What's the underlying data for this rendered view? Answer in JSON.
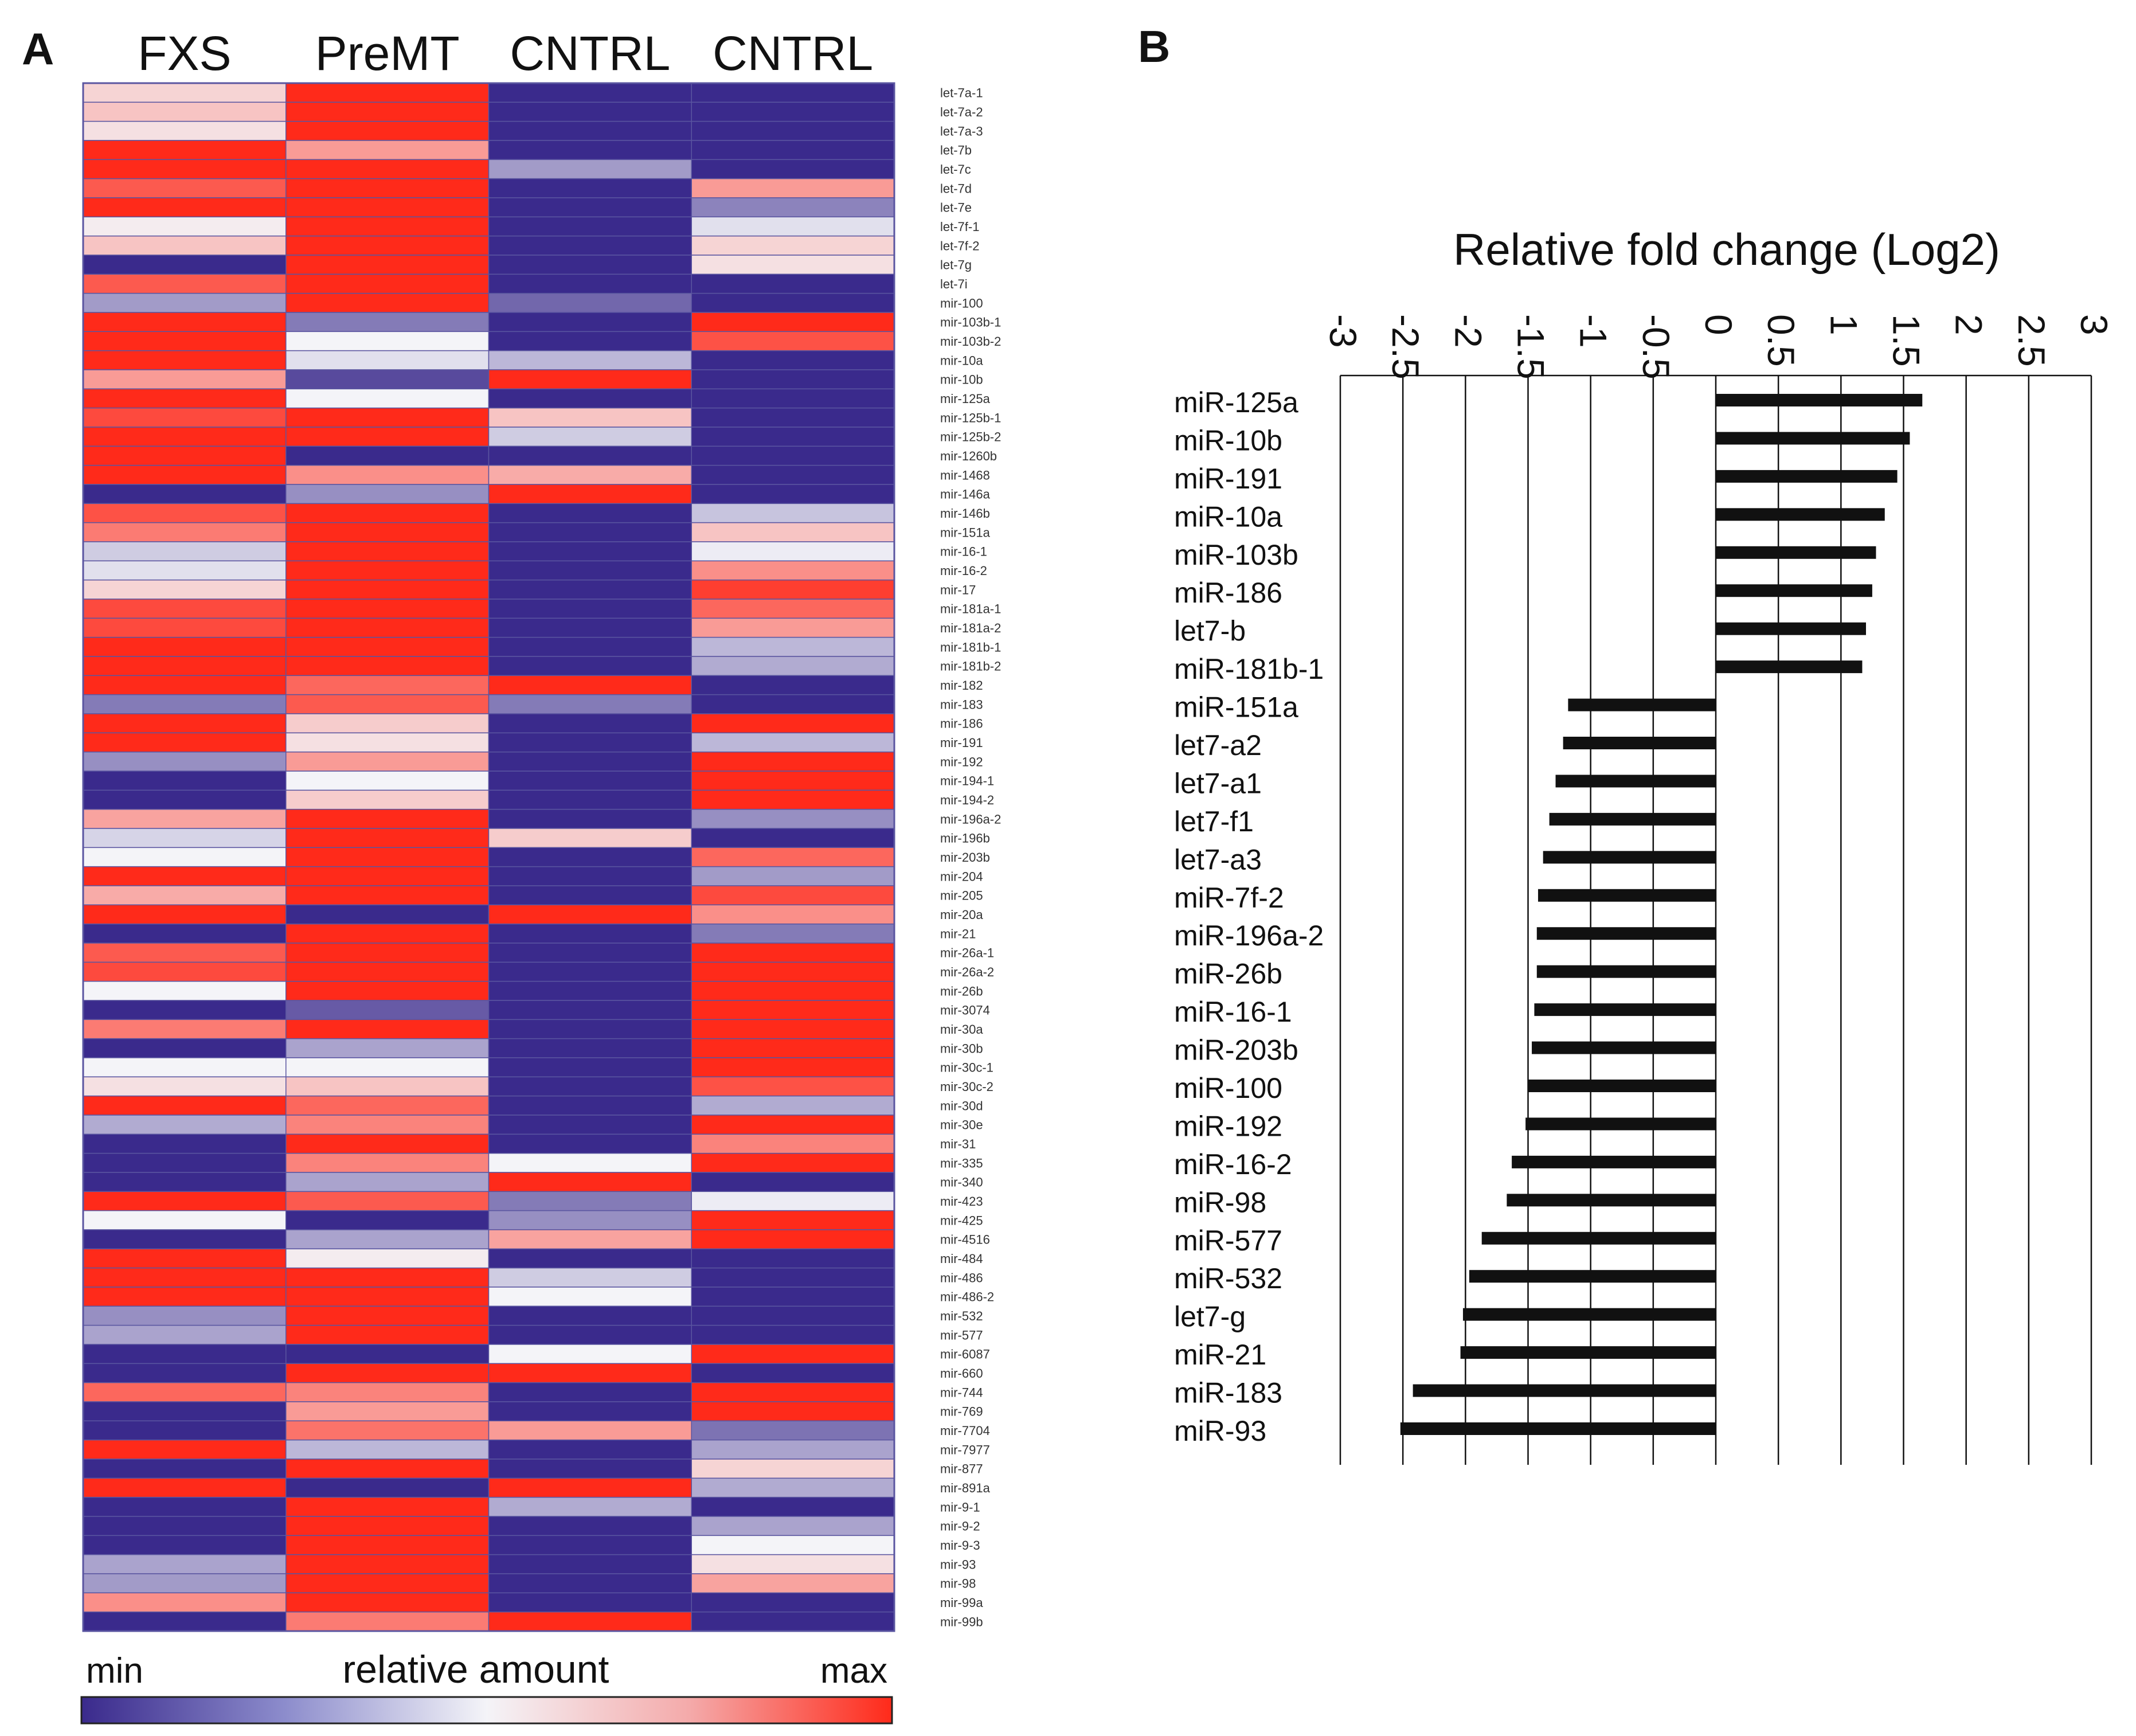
{
  "panel_a": {
    "label": "A",
    "legend": {
      "min_label": "min",
      "title": "relative amount",
      "max_label": "max",
      "gradient_colors": [
        "#3a2a8c",
        "#8c8ccc",
        "#f4f4f8",
        "#f4aaaa",
        "#ff2a1a"
      ]
    },
    "colors": {
      "low": "#3a2a8c",
      "mid": "#f4f4f8",
      "high": "#ff2a1a",
      "grid": "#5a55a0"
    }
  },
  "panel_b": {
    "label": "B",
    "bar_color": "#111111"
  },
  "chart_data": [
    {
      "type": "heatmap",
      "title": "",
      "scale_note": "values 0 = min (blue), 1 = max (red)",
      "columns": [
        "FXS",
        "PreMT",
        "CNTRL",
        "CNTRL"
      ],
      "rows": [
        "let-7a-1",
        "let-7a-2",
        "let-7a-3",
        "let-7b",
        "let-7c",
        "let-7d",
        "let-7e",
        "let-7f-1",
        "let-7f-2",
        "let-7g",
        "let-7i",
        "mir-100",
        "mir-103b-1",
        "mir-103b-2",
        "mir-10a",
        "mir-10b",
        "mir-125a",
        "mir-125b-1",
        "mir-125b-2",
        "mir-1260b",
        "mir-1468",
        "mir-146a",
        "mir-146b",
        "mir-151a",
        "mir-16-1",
        "mir-16-2",
        "mir-17",
        "mir-181a-1",
        "mir-181a-2",
        "mir-181b-1",
        "mir-181b-2",
        "mir-182",
        "mir-183",
        "mir-186",
        "mir-191",
        "mir-192",
        "mir-194-1",
        "mir-194-2",
        "mir-196a-2",
        "mir-196b",
        "mir-203b",
        "mir-204",
        "mir-205",
        "mir-20a",
        "mir-21",
        "mir-26a-1",
        "mir-26a-2",
        "mir-26b",
        "mir-3074",
        "mir-30a",
        "mir-30b",
        "mir-30c-1",
        "mir-30c-2",
        "mir-30d",
        "mir-30e",
        "mir-31",
        "mir-335",
        "mir-340",
        "mir-423",
        "mir-425",
        "mir-4516",
        "mir-484",
        "mir-486",
        "mir-486-2",
        "mir-532",
        "mir-577",
        "mir-6087",
        "mir-660",
        "mir-744",
        "mir-769",
        "mir-7704",
        "mir-7977",
        "mir-877",
        "mir-891a",
        "mir-9-1",
        "mir-9-2",
        "mir-9-3",
        "mir-93",
        "mir-98",
        "mir-99a",
        "mir-99b"
      ],
      "values": [
        [
          0.58,
          1.0,
          0.0,
          0.0
        ],
        [
          0.62,
          1.0,
          0.0,
          0.0
        ],
        [
          0.55,
          1.0,
          0.0,
          0.0
        ],
        [
          1.0,
          0.72,
          0.0,
          0.0
        ],
        [
          1.0,
          1.0,
          0.28,
          0.0
        ],
        [
          0.88,
          1.0,
          0.0,
          0.72
        ],
        [
          1.0,
          1.0,
          0.0,
          0.22
        ],
        [
          0.52,
          1.0,
          0.0,
          0.45
        ],
        [
          0.62,
          1.0,
          0.0,
          0.58
        ],
        [
          0.0,
          1.0,
          0.0,
          0.55
        ],
        [
          0.88,
          1.0,
          0.0,
          0.0
        ],
        [
          0.28,
          1.0,
          0.15,
          0.0
        ],
        [
          1.0,
          0.2,
          0.0,
          1.0
        ],
        [
          1.0,
          0.5,
          0.0,
          0.9
        ],
        [
          1.0,
          0.45,
          0.35,
          0.0
        ],
        [
          0.72,
          0.08,
          1.0,
          0.0
        ],
        [
          1.0,
          0.5,
          0.0,
          0.0
        ],
        [
          0.92,
          1.0,
          0.62,
          0.0
        ],
        [
          1.0,
          1.0,
          0.4,
          0.0
        ],
        [
          1.0,
          0.0,
          0.0,
          0.0
        ],
        [
          1.0,
          0.75,
          0.68,
          0.0
        ],
        [
          0.0,
          0.25,
          1.0,
          0.0
        ],
        [
          0.9,
          1.0,
          0.0,
          0.38
        ],
        [
          0.8,
          1.0,
          0.0,
          0.62
        ],
        [
          0.4,
          1.0,
          0.0,
          0.48
        ],
        [
          0.45,
          1.0,
          0.0,
          0.75
        ],
        [
          0.58,
          1.0,
          0.0,
          0.95
        ],
        [
          0.92,
          1.0,
          0.0,
          0.85
        ],
        [
          0.92,
          1.0,
          0.0,
          0.72
        ],
        [
          1.0,
          1.0,
          0.0,
          0.35
        ],
        [
          1.0,
          1.0,
          0.0,
          0.32
        ],
        [
          1.0,
          0.85,
          1.0,
          0.0
        ],
        [
          0.2,
          0.88,
          0.2,
          0.0
        ],
        [
          1.0,
          0.6,
          0.0,
          1.0
        ],
        [
          1.0,
          0.55,
          0.0,
          0.35
        ],
        [
          0.25,
          0.72,
          0.0,
          1.0
        ],
        [
          0.0,
          0.5,
          0.0,
          1.0
        ],
        [
          0.0,
          0.6,
          0.0,
          1.0
        ],
        [
          0.7,
          1.0,
          0.0,
          0.25
        ],
        [
          0.42,
          1.0,
          0.6,
          0.0
        ],
        [
          0.5,
          1.0,
          0.0,
          0.85
        ],
        [
          1.0,
          1.0,
          0.0,
          0.28
        ],
        [
          0.68,
          1.0,
          0.0,
          0.92
        ],
        [
          1.0,
          0.0,
          1.0,
          0.75
        ],
        [
          0.0,
          1.0,
          0.0,
          0.2
        ],
        [
          0.88,
          1.0,
          0.0,
          1.0
        ],
        [
          0.92,
          1.0,
          0.0,
          1.0
        ],
        [
          0.5,
          1.0,
          0.0,
          1.0
        ],
        [
          0.0,
          0.12,
          0.0,
          1.0
        ],
        [
          0.8,
          1.0,
          0.0,
          1.0
        ],
        [
          0.0,
          0.3,
          0.0,
          1.0
        ],
        [
          0.5,
          0.5,
          0.0,
          1.0
        ],
        [
          0.55,
          0.62,
          0.0,
          0.9
        ],
        [
          1.0,
          0.85,
          0.0,
          0.32
        ],
        [
          0.32,
          0.78,
          0.0,
          1.0
        ],
        [
          0.0,
          1.0,
          0.0,
          0.78
        ],
        [
          0.0,
          0.78,
          0.5,
          1.0
        ],
        [
          0.0,
          0.3,
          1.0,
          0.0
        ],
        [
          1.0,
          0.88,
          0.2,
          0.48
        ],
        [
          0.5,
          0.0,
          0.25,
          1.0
        ],
        [
          0.0,
          0.3,
          0.7,
          1.0
        ],
        [
          1.0,
          0.52,
          0.0,
          0.0
        ],
        [
          1.0,
          1.0,
          0.4,
          0.0
        ],
        [
          1.0,
          1.0,
          0.5,
          0.0
        ],
        [
          0.25,
          1.0,
          0.0,
          0.0
        ],
        [
          0.3,
          1.0,
          0.0,
          0.0
        ],
        [
          0.0,
          0.0,
          0.5,
          1.0
        ],
        [
          0.0,
          1.0,
          1.0,
          0.0
        ],
        [
          0.85,
          0.78,
          0.0,
          1.0
        ],
        [
          0.0,
          0.72,
          0.0,
          1.0
        ],
        [
          0.0,
          0.82,
          0.72,
          0.18
        ],
        [
          1.0,
          0.35,
          0.0,
          0.3
        ],
        [
          0.0,
          1.0,
          0.0,
          0.58
        ],
        [
          1.0,
          0.0,
          1.0,
          0.32
        ],
        [
          0.0,
          1.0,
          0.32,
          0.0
        ],
        [
          0.0,
          1.0,
          0.0,
          0.3
        ],
        [
          0.0,
          1.0,
          0.0,
          0.5
        ],
        [
          0.3,
          1.0,
          0.0,
          0.55
        ],
        [
          0.28,
          1.0,
          0.0,
          0.7
        ],
        [
          0.75,
          1.0,
          0.0,
          0.0
        ],
        [
          0.0,
          0.8,
          1.0,
          0.0
        ]
      ]
    },
    {
      "type": "bar",
      "orientation": "horizontal",
      "title": "Relative fold change (Log2)",
      "xlabel": "Relative fold change (Log2)",
      "ylabel": "",
      "xlim": [
        -3,
        3
      ],
      "x_ticks": [
        "-3",
        "-2.5",
        "-2",
        "-1.5",
        "-1",
        "-0.5",
        "0",
        "0.5",
        "1",
        "1.5",
        "2",
        "2.5",
        "3"
      ],
      "categories": [
        "miR-125a",
        "miR-10b",
        "miR-191",
        "miR-10a",
        "miR-103b",
        "miR-186",
        "let7-b",
        "miR-181b-1",
        "miR-151a",
        "let7-a2",
        "let7-a1",
        "let7-f1",
        "let7-a3",
        "miR-7f-2",
        "miR-196a-2",
        "miR-26b",
        "miR-16-1",
        "miR-203b",
        "miR-100",
        "miR-192",
        "miR-16-2",
        "miR-98",
        "miR-577",
        "miR-532",
        "let7-g",
        "miR-21",
        "miR-183",
        "miR-93"
      ],
      "values": [
        1.65,
        1.55,
        1.45,
        1.35,
        1.28,
        1.25,
        1.2,
        1.17,
        -1.18,
        -1.22,
        -1.28,
        -1.33,
        -1.38,
        -1.42,
        -1.43,
        -1.43,
        -1.45,
        -1.47,
        -1.5,
        -1.52,
        -1.63,
        -1.67,
        -1.87,
        -1.97,
        -2.02,
        -2.04,
        -2.42,
        -2.52
      ]
    }
  ]
}
